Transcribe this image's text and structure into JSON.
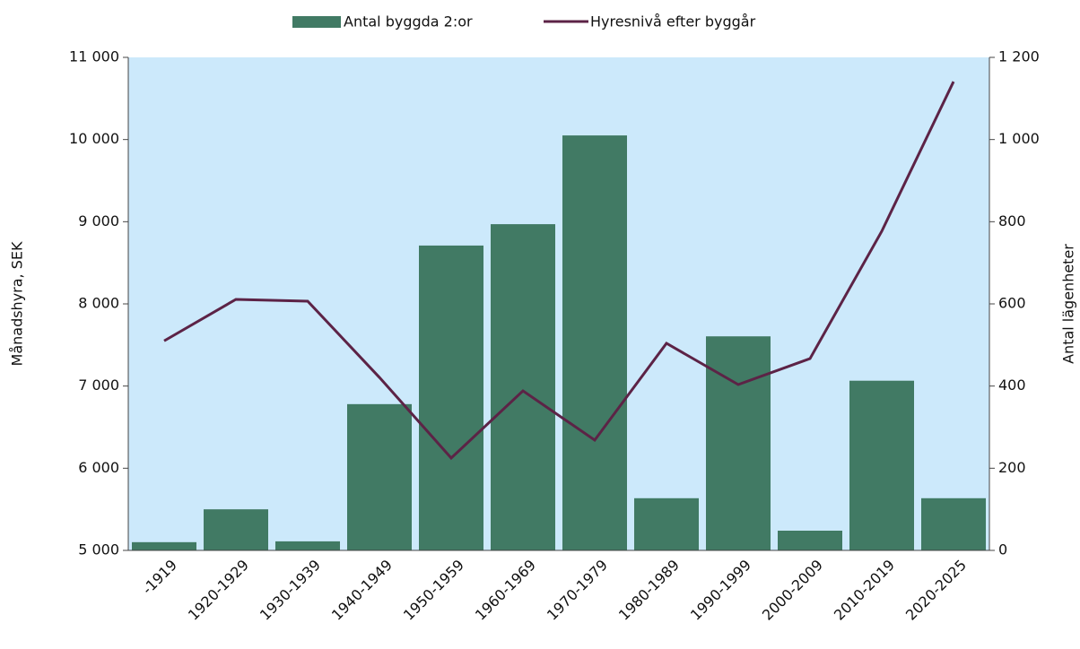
{
  "chart_data": {
    "type": "bar_line",
    "categories": [
      "-1919",
      "1920-1929",
      "1930-1939",
      "1940-1949",
      "1950-1959",
      "1960-1969",
      "1970-1979",
      "1980-1989",
      "1990-1999",
      "2000-2009",
      "2010-2019",
      "2020-2025"
    ],
    "series": [
      {
        "name": "Antal byggda 2:or",
        "type": "bar",
        "axis": "y2",
        "color": "#417a64",
        "values": [
          20,
          100,
          22,
          356,
          742,
          794,
          1010,
          127,
          521,
          48,
          413,
          127
        ]
      },
      {
        "name": "Hyresnivå efter byggår",
        "type": "line",
        "axis": "y",
        "color": "#5c2346",
        "values": [
          7550,
          8055,
          8033,
          7105,
          6124,
          6942,
          6342,
          7520,
          7018,
          7334,
          8884,
          10705
        ]
      }
    ],
    "ylabel": "Månadshyra, SEK",
    "y2label": "Antal lägenheter",
    "ylim": [
      5000,
      11000
    ],
    "yticks": [
      {
        "value": 5000,
        "label": "5 000"
      },
      {
        "value": 6000,
        "label": "6 000"
      },
      {
        "value": 7000,
        "label": "7 000"
      },
      {
        "value": 8000,
        "label": "8 000"
      },
      {
        "value": 9000,
        "label": "9 000"
      },
      {
        "value": 10000,
        "label": "10 000"
      },
      {
        "value": 11000,
        "label": "11 000"
      }
    ],
    "y2lim": [
      0,
      1200
    ],
    "y2ticks": [
      0,
      200,
      400,
      600,
      800,
      {
        "value": 1000,
        "label": "1 000"
      },
      {
        "value": 1200,
        "label": "1 200"
      }
    ],
    "plot_background": "#cce9fb",
    "legend": "top"
  }
}
